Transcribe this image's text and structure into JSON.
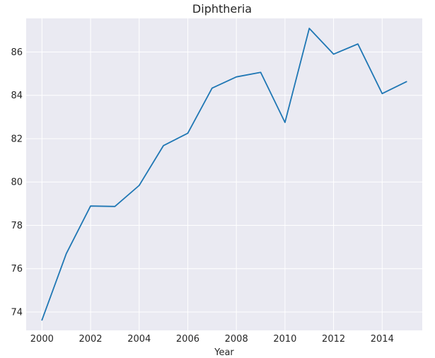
{
  "chart_data": {
    "type": "line",
    "title": "Diphtheria",
    "xlabel": "Year",
    "ylabel": "",
    "xlim": [
      1999.35,
      2015.65
    ],
    "ylim": [
      73.15,
      87.55
    ],
    "xticks": [
      2000,
      2002,
      2004,
      2006,
      2008,
      2010,
      2012,
      2014
    ],
    "yticks": [
      74,
      76,
      78,
      80,
      82,
      84,
      86
    ],
    "grid": true,
    "legend": "none",
    "colors": {
      "background": "#eaeaf2",
      "grid": "#ffffff",
      "line": "#1f77b4",
      "text": "#262626"
    },
    "series": [
      {
        "x": [
          2000,
          2001,
          2002,
          2003,
          2004,
          2005,
          2006,
          2007,
          2008,
          2009,
          2010,
          2011,
          2012,
          2013,
          2014,
          2015
        ],
        "values": [
          73.63,
          76.69,
          78.89,
          78.87,
          79.84,
          81.68,
          82.25,
          84.33,
          84.85,
          85.06,
          82.75,
          87.09,
          85.9,
          86.37,
          84.08,
          84.63
        ]
      }
    ]
  }
}
